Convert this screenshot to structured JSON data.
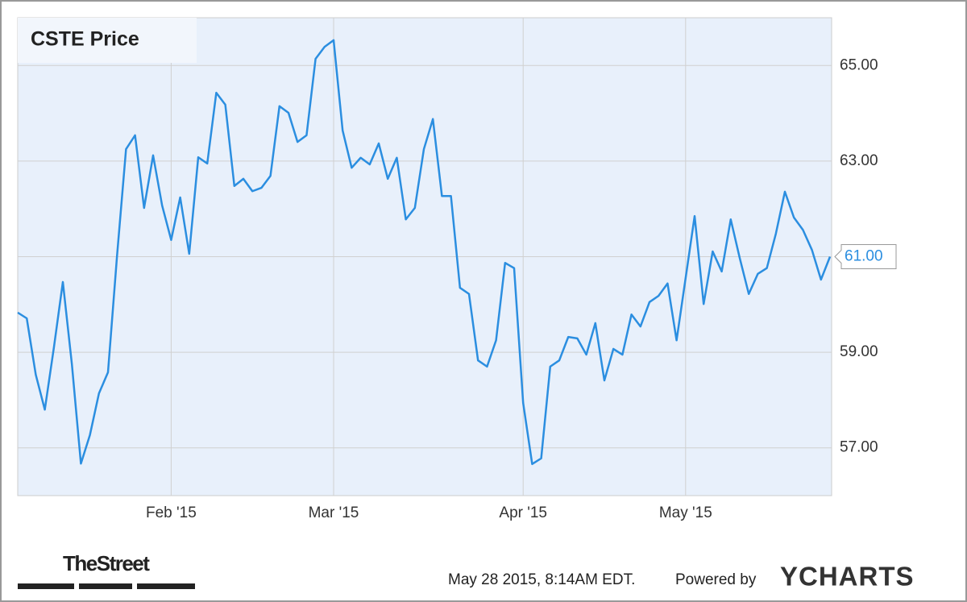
{
  "chart_data": {
    "type": "line",
    "title": "CSTE Price",
    "categories": [
      null,
      null,
      null,
      null,
      null,
      null,
      null,
      null,
      null,
      null,
      null,
      null,
      null,
      null,
      null,
      null,
      null,
      "Feb '15",
      null,
      null,
      null,
      null,
      null,
      null,
      null,
      null,
      null,
      null,
      null,
      null,
      null,
      null,
      null,
      null,
      null,
      "Mar '15",
      null,
      null,
      null,
      null,
      null,
      null,
      null,
      null,
      null,
      null,
      null,
      null,
      null,
      null,
      null,
      null,
      null,
      null,
      null,
      null,
      "Apr '15",
      null,
      null,
      null,
      null,
      null,
      null,
      null,
      null,
      null,
      null,
      null,
      null,
      null,
      null,
      null,
      null,
      null,
      "May '15",
      null,
      null,
      null,
      null,
      null,
      null,
      null,
      null,
      null,
      null,
      null,
      null,
      null,
      null,
      null,
      null
    ],
    "series": [
      {
        "name": "CSTE Price",
        "color": "#2b8ee0",
        "values": [
          59.83,
          59.71,
          58.53,
          57.8,
          59.09,
          60.47,
          58.75,
          56.67,
          57.27,
          58.14,
          58.58,
          61.01,
          63.25,
          63.54,
          62.02,
          63.12,
          62.07,
          61.35,
          62.24,
          61.06,
          63.08,
          62.95,
          64.43,
          64.18,
          62.48,
          62.63,
          62.37,
          62.44,
          62.69,
          64.15,
          64.01,
          63.4,
          63.54,
          65.14,
          65.39,
          65.53,
          63.64,
          62.86,
          63.07,
          62.93,
          63.37,
          62.63,
          63.07,
          61.78,
          62.02,
          63.25,
          63.88,
          62.27,
          62.27,
          60.35,
          60.22,
          58.83,
          58.7,
          59.25,
          60.87,
          60.76,
          57.94,
          56.66,
          56.78,
          58.7,
          58.83,
          59.32,
          59.29,
          58.95,
          59.61,
          58.41,
          59.07,
          58.95,
          59.79,
          59.54,
          60.05,
          60.18,
          60.44,
          59.25,
          60.55,
          61.85,
          60.01,
          61.11,
          60.69,
          61.78,
          60.97,
          60.22,
          60.64,
          60.76,
          61.48,
          62.36,
          61.82,
          61.56,
          61.14,
          60.52,
          61.0
        ],
        "last_label": "61.00"
      }
    ],
    "ylim": [
      56,
      66
    ],
    "yticks": [
      {
        "value": 57,
        "label": "57.00"
      },
      {
        "value": 59,
        "label": "59.00"
      },
      {
        "value": 61,
        "label": "61.00"
      },
      {
        "value": 63,
        "label": "63.00"
      },
      {
        "value": 65,
        "label": "65.00"
      }
    ],
    "grid": true,
    "footer": {
      "source_logo": "TheStreet",
      "timestamp": "May 28 2015, 8:14AM EDT.",
      "powered_by": "Powered by",
      "brand": "YCHARTS"
    }
  }
}
